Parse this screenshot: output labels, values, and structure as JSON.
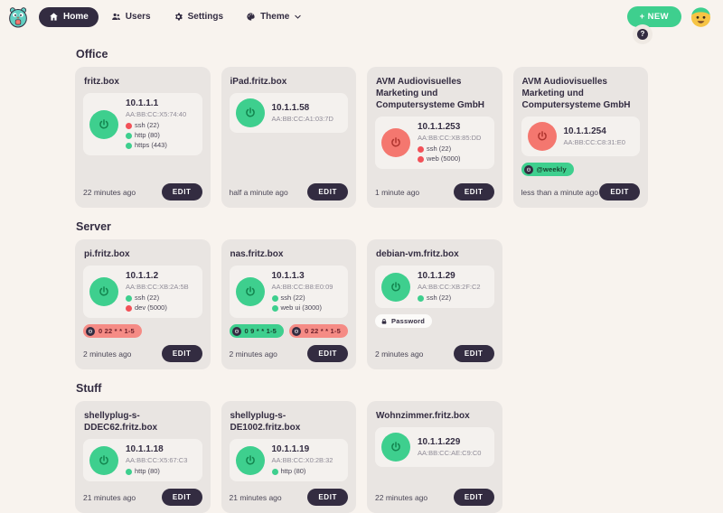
{
  "colors": {
    "page_bg": "#f8f3ee",
    "card_bg": "#e9e5e2",
    "panel_bg": "#f4f1ee",
    "dark": "#332c41",
    "text": "#332c41",
    "green": "#3ecf8e",
    "red": "#f4776f",
    "dot_green": "#3ecf8e",
    "dot_red": "#f25158",
    "badge_red_bg": "#f58b85",
    "muted": "#8f8b97"
  },
  "header": {
    "logo_icon": "gopher-logo",
    "nav": [
      {
        "label": "Home",
        "icon": "home-icon",
        "active": true
      },
      {
        "label": "Users",
        "icon": "users-icon",
        "active": false
      },
      {
        "label": "Settings",
        "icon": "gear-icon",
        "active": false
      },
      {
        "label": "Theme",
        "icon": "palette-icon",
        "active": false,
        "chevron": "chevron-down-icon"
      }
    ],
    "new_button_label": "+ NEW",
    "help_icon": "question-icon",
    "avatar_icon": "emoji-avatar"
  },
  "labels": {
    "edit": "EDIT"
  },
  "sections": [
    {
      "title": "Office",
      "devices": [
        {
          "name": "fritz.box",
          "state": "on",
          "ip": "10.1.1.1",
          "mac": "AA:BB:CC:X5:74:40",
          "ports": [
            {
              "label": "ssh (22)",
              "status": "red"
            },
            {
              "label": "http (80)",
              "status": "green"
            },
            {
              "label": "https (443)",
              "status": "green"
            }
          ],
          "badges": [],
          "last_seen": "22 minutes ago"
        },
        {
          "name": "iPad.fritz.box",
          "state": "on",
          "ip": "10.1.1.58",
          "mac": "AA:BB:CC:A1:03:7D",
          "ports": [],
          "badges": [],
          "last_seen": "half a minute ago"
        },
        {
          "name": "AVM Audiovisuelles Marketing und Computersysteme GmbH",
          "state": "off",
          "ip": "10.1.1.253",
          "mac": "AA:BB:CC:XB:85:DD",
          "ports": [
            {
              "label": "ssh (22)",
              "status": "red"
            },
            {
              "label": "web (5000)",
              "status": "red"
            }
          ],
          "badges": [],
          "last_seen": "1 minute ago"
        },
        {
          "name": "AVM Audiovisuelles Marketing und Computersysteme GmbH",
          "state": "off",
          "ip": "10.1.1.254",
          "mac": "AA:BB:CC:C8:31:E0",
          "ports": [],
          "badges": [
            {
              "label": "@weekly",
              "style": "green",
              "icon": "schedule-icon"
            }
          ],
          "last_seen": "less than a minute ago"
        }
      ]
    },
    {
      "title": "Server",
      "devices": [
        {
          "name": "pi.fritz.box",
          "state": "on",
          "ip": "10.1.1.2",
          "mac": "AA:BB:CC:XB:2A:5B",
          "ports": [
            {
              "label": "ssh (22)",
              "status": "green"
            },
            {
              "label": "dev (5000)",
              "status": "red"
            }
          ],
          "badges": [
            {
              "label": "0 22 * * 1-5",
              "style": "red",
              "icon": "schedule-icon"
            }
          ],
          "last_seen": "2 minutes ago"
        },
        {
          "name": "nas.fritz.box",
          "state": "on",
          "ip": "10.1.1.3",
          "mac": "AA:BB:CC:B8:E0:09",
          "ports": [
            {
              "label": "ssh (22)",
              "status": "green"
            },
            {
              "label": "web ui (3000)",
              "status": "green"
            }
          ],
          "badges": [
            {
              "label": "0 9 * * 1-5",
              "style": "green",
              "icon": "schedule-icon"
            },
            {
              "label": "0 22 * * 1-5",
              "style": "red",
              "icon": "schedule-icon"
            }
          ],
          "last_seen": "2 minutes ago"
        },
        {
          "name": "debian-vm.fritz.box",
          "state": "on",
          "ip": "10.1.1.29",
          "mac": "AA:BB:CC:XB:2F:C2",
          "ports": [
            {
              "label": "ssh (22)",
              "status": "green"
            }
          ],
          "badges": [
            {
              "label": "Password",
              "style": "white",
              "icon": "lock-icon"
            }
          ],
          "last_seen": "2 minutes ago"
        }
      ]
    },
    {
      "title": "Stuff",
      "devices": [
        {
          "name": "shellyplug-s-DDEC62.fritz.box",
          "state": "on",
          "ip": "10.1.1.18",
          "mac": "AA:BB:CC:X5:67:C3",
          "ports": [
            {
              "label": "http (80)",
              "status": "green"
            }
          ],
          "badges": [],
          "last_seen": "21 minutes ago"
        },
        {
          "name": "shellyplug-s-DE1002.fritz.box",
          "state": "on",
          "ip": "10.1.1.19",
          "mac": "AA:BB:CC:X0:2B:32",
          "ports": [
            {
              "label": "http (80)",
              "status": "green"
            }
          ],
          "badges": [],
          "last_seen": "21 minutes ago"
        },
        {
          "name": "Wohnzimmer.fritz.box",
          "state": "on",
          "ip": "10.1.1.229",
          "mac": "AA:BB:CC:AE:C9:C0",
          "ports": [],
          "badges": [],
          "last_seen": "22 minutes ago"
        }
      ]
    }
  ]
}
